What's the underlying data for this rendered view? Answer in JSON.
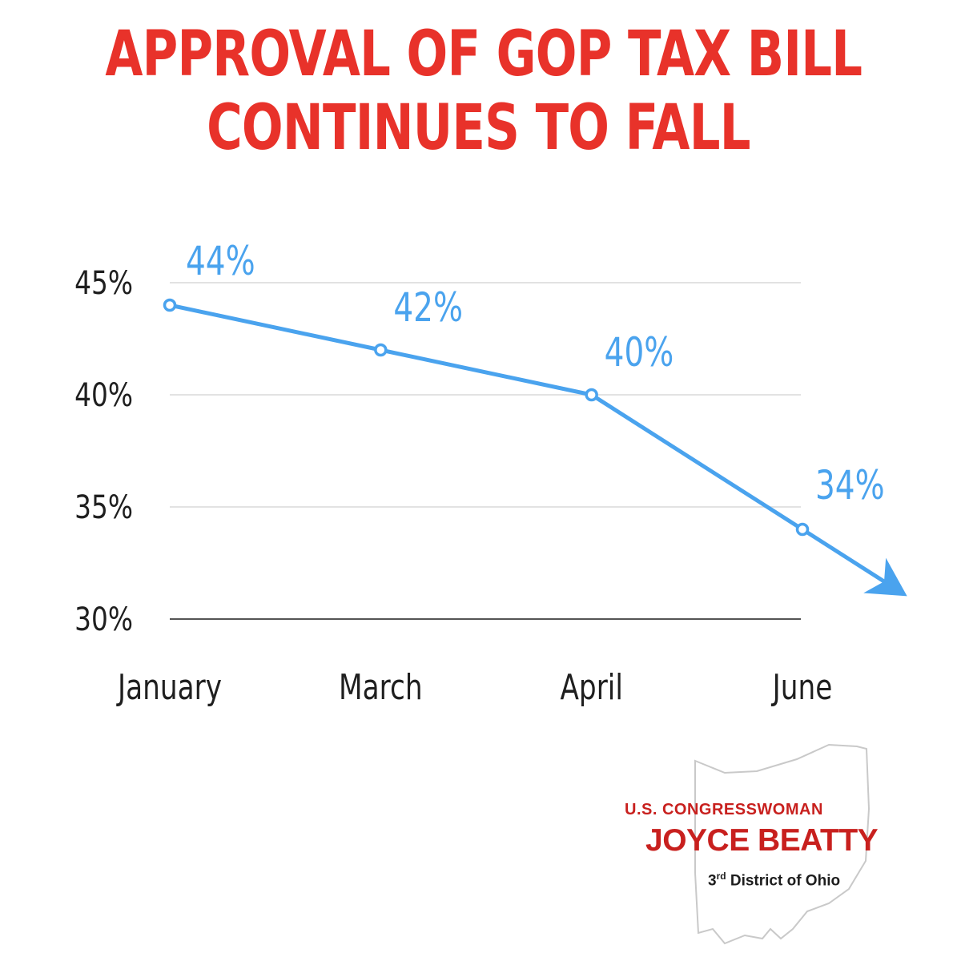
{
  "chart_data": {
    "type": "line",
    "title": [
      "APPROVAL OF GOP TAX BILL",
      "CONTINUES TO FALL"
    ],
    "categories": [
      "January",
      "March",
      "April",
      "June"
    ],
    "series": [
      {
        "name": "Approval",
        "values": [
          44,
          42,
          40,
          34
        ],
        "labels": [
          "44%",
          "42%",
          "40%",
          "34%"
        ]
      }
    ],
    "yticks": [
      45,
      40,
      35,
      30
    ],
    "ytick_labels": [
      "45%",
      "40%",
      "35%",
      "30%"
    ],
    "ylim": [
      30,
      45
    ],
    "xlabel": "",
    "ylabel": "",
    "grid": true,
    "trend_arrow": "down",
    "colors": {
      "line": "#4aa3ee",
      "label": "#4aa3ee",
      "title": "#e8322a",
      "grid": "#e2e2e2",
      "axis": "#555555",
      "tick": "#1f1f1f"
    }
  },
  "signature": {
    "line1": "U.S. CONGRESSWOMAN",
    "line2": "JOYCE BEATTY",
    "line3_prefix": "3",
    "line3_sup": "rd",
    "line3_suffix": " District of Ohio",
    "outline": "ohio-state-outline"
  }
}
